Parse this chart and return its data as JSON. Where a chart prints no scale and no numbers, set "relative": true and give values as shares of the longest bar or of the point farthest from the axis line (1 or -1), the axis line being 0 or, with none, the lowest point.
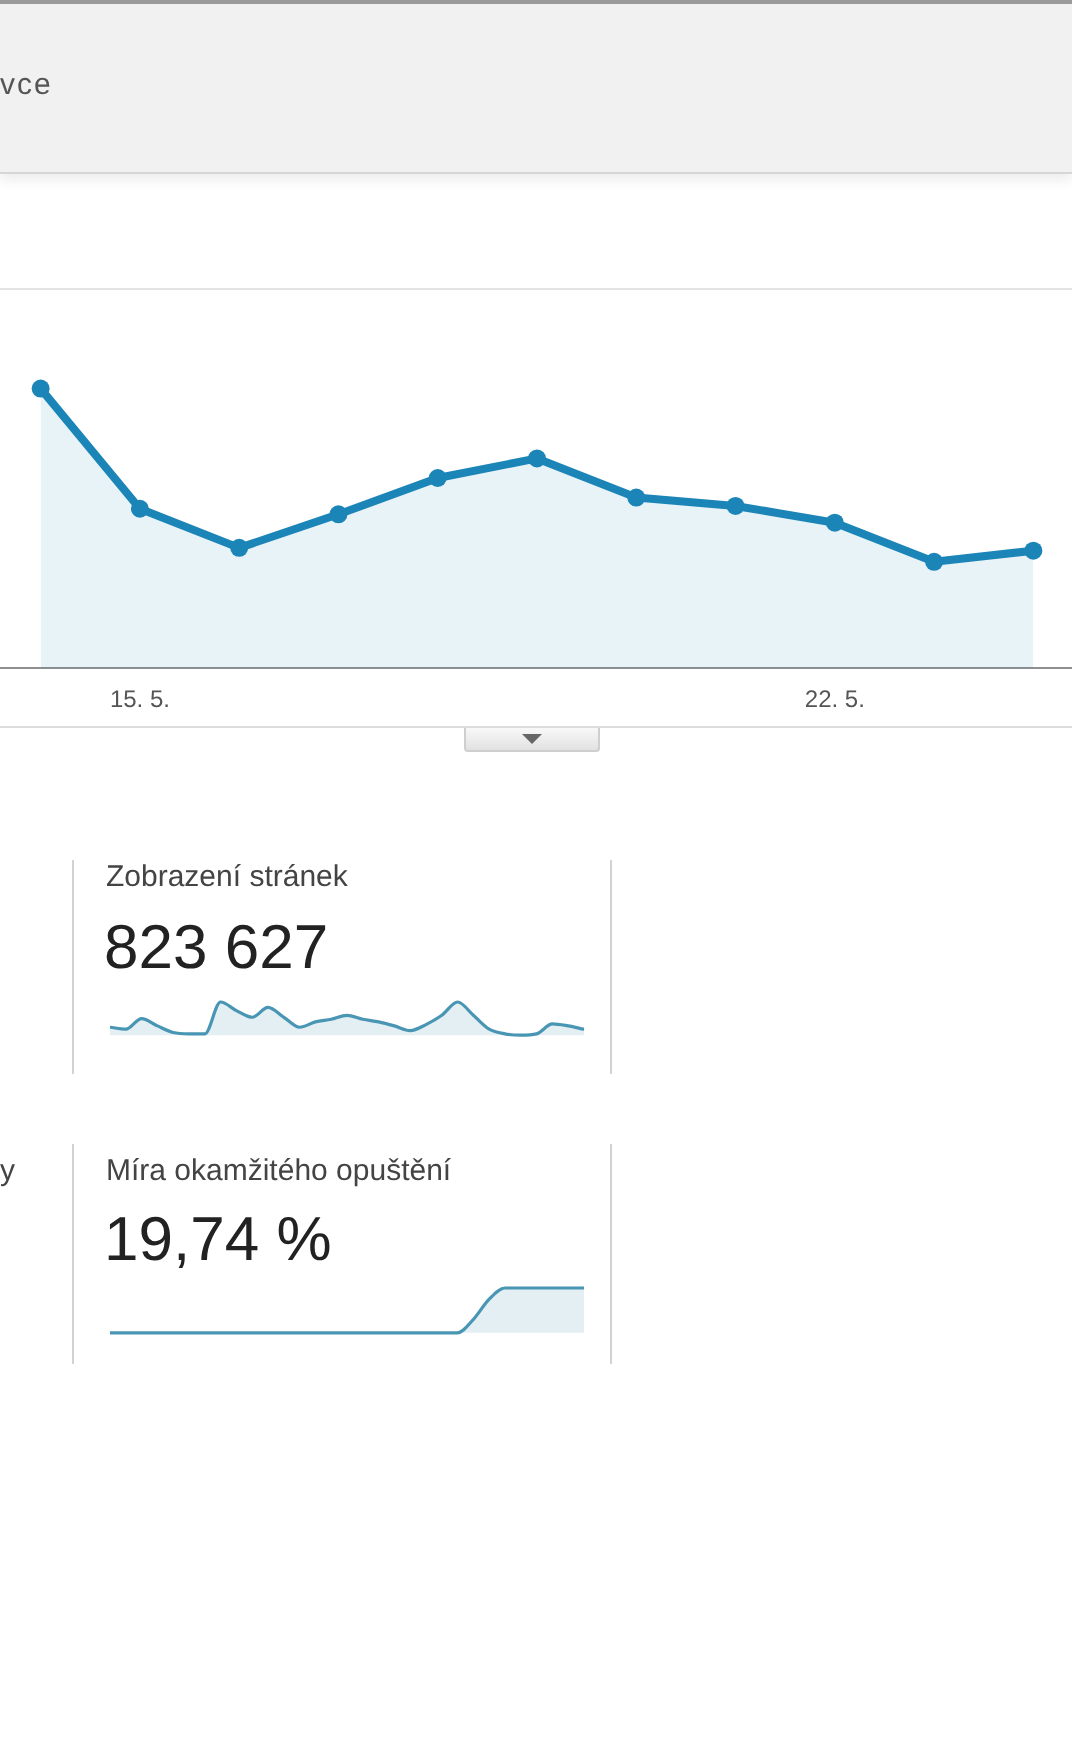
{
  "chart_data": [
    {
      "type": "area",
      "relative": true,
      "categories": [
        null,
        "15. 5.",
        null,
        null,
        null,
        null,
        null,
        null,
        "22. 5.",
        null,
        null
      ],
      "values": [
        1,
        0.57,
        0.43,
        0.55,
        0.68,
        0.75,
        0.61,
        0.58,
        0.52,
        0.38,
        0.42
      ],
      "color": "#1c85b8",
      "marker": "circle",
      "tick_labels": "x",
      "annotations": [
        "vce"
      ]
    },
    {
      "type": "area",
      "relative": true,
      "title": "Zobrazení stránek",
      "subtitle": "823 627",
      "categories": [
        null,
        null,
        null,
        null,
        null,
        null,
        null,
        null,
        null,
        null,
        null,
        null,
        null,
        null,
        null,
        null,
        null,
        null,
        null,
        null,
        null,
        null,
        null,
        null,
        null,
        null,
        null,
        null,
        null,
        null,
        null
      ],
      "values": [
        0.24,
        0.18,
        0.5,
        0.28,
        0.08,
        0.04,
        0.04,
        1,
        0.74,
        0.54,
        0.84,
        0.54,
        0.24,
        0.4,
        0.48,
        0.6,
        0.48,
        0.4,
        0.28,
        0.14,
        0.32,
        0.6,
        1,
        0.6,
        0.18,
        0.04,
        0,
        0.04,
        0.34,
        0.28,
        0.18
      ],
      "color": "#4896b4"
    },
    {
      "type": "other",
      "title": "y"
    },
    {
      "type": "area",
      "relative": true,
      "title": "Míra okamžitého opuštění",
      "subtitle": "19,74 %",
      "categories": [
        null,
        null,
        null,
        null,
        null,
        null,
        null,
        null,
        null,
        null,
        null,
        null,
        null,
        null,
        null,
        null,
        null,
        null,
        null,
        null,
        null,
        null,
        null,
        null,
        null,
        null,
        null,
        null,
        null,
        null,
        null
      ],
      "values": [
        0,
        0,
        0,
        0,
        0,
        0,
        0,
        0,
        0,
        0,
        0,
        0,
        0,
        0,
        0,
        0,
        0,
        0,
        0,
        0,
        0,
        0,
        0,
        0.3,
        0.75,
        1,
        1,
        1,
        1,
        1,
        1
      ],
      "color": "#4896b4"
    }
  ]
}
